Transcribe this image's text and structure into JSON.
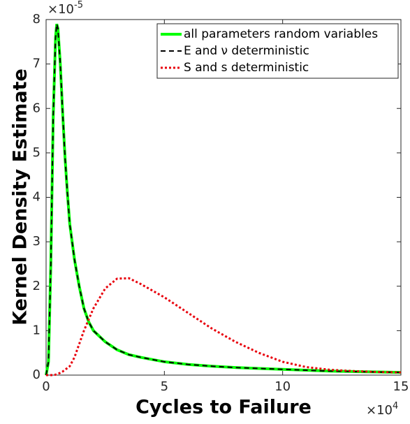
{
  "chart_data": {
    "type": "line",
    "xlabel": "Cycles to Failure",
    "ylabel": "Kernel Density Estimate",
    "x_scale_label": [
      "×10",
      "4"
    ],
    "y_scale_label": [
      "×10",
      "-5"
    ],
    "x": [
      0,
      0.1,
      0.2,
      0.3,
      0.4,
      0.45,
      0.5,
      0.6,
      0.7,
      0.8,
      0.9,
      1.0,
      1.2,
      1.4,
      1.6,
      1.8,
      2,
      2.5,
      3,
      3.5,
      4,
      5,
      6,
      7,
      8,
      9,
      10,
      11,
      12,
      13,
      14,
      15
    ],
    "series": [
      {
        "name": "all parameters random variables",
        "color": "#00ff00",
        "style": "solid",
        "values": [
          0,
          0.3,
          2.5,
          5.8,
          7.6,
          7.9,
          7.8,
          7.0,
          5.9,
          4.9,
          4.1,
          3.4,
          2.6,
          2.0,
          1.5,
          1.2,
          1.0,
          0.75,
          0.57,
          0.46,
          0.4,
          0.3,
          0.24,
          0.2,
          0.17,
          0.15,
          0.13,
          0.11,
          0.09,
          0.08,
          0.07,
          0.06
        ]
      },
      {
        "name": "E and ν deterministic",
        "color": "#000000",
        "style": "dashed",
        "values": [
          0,
          0.3,
          2.5,
          5.8,
          7.6,
          7.9,
          7.8,
          7.0,
          5.9,
          4.9,
          4.1,
          3.4,
          2.6,
          2.0,
          1.5,
          1.2,
          1.0,
          0.75,
          0.57,
          0.46,
          0.4,
          0.3,
          0.24,
          0.2,
          0.17,
          0.15,
          0.13,
          0.11,
          0.09,
          0.08,
          0.07,
          0.06
        ]
      },
      {
        "name": "S and s deterministic",
        "color": "#e8000b",
        "style": "dotted",
        "values": [
          0,
          0,
          0,
          0,
          0.01,
          0.02,
          0.03,
          0.05,
          0.08,
          0.12,
          0.16,
          0.2,
          0.4,
          0.7,
          1.0,
          1.25,
          1.5,
          1.95,
          2.17,
          2.18,
          2.05,
          1.75,
          1.4,
          1.05,
          0.75,
          0.5,
          0.3,
          0.18,
          0.12,
          0.09,
          0.07,
          0.06
        ]
      }
    ],
    "xlim": [
      0,
      15
    ],
    "xticks": [
      0,
      5,
      10,
      15
    ],
    "ylim": [
      0,
      8
    ],
    "yticks": [
      0,
      1,
      2,
      3,
      4,
      5,
      6,
      7,
      8
    ],
    "grid": false,
    "legend": "upper right"
  }
}
